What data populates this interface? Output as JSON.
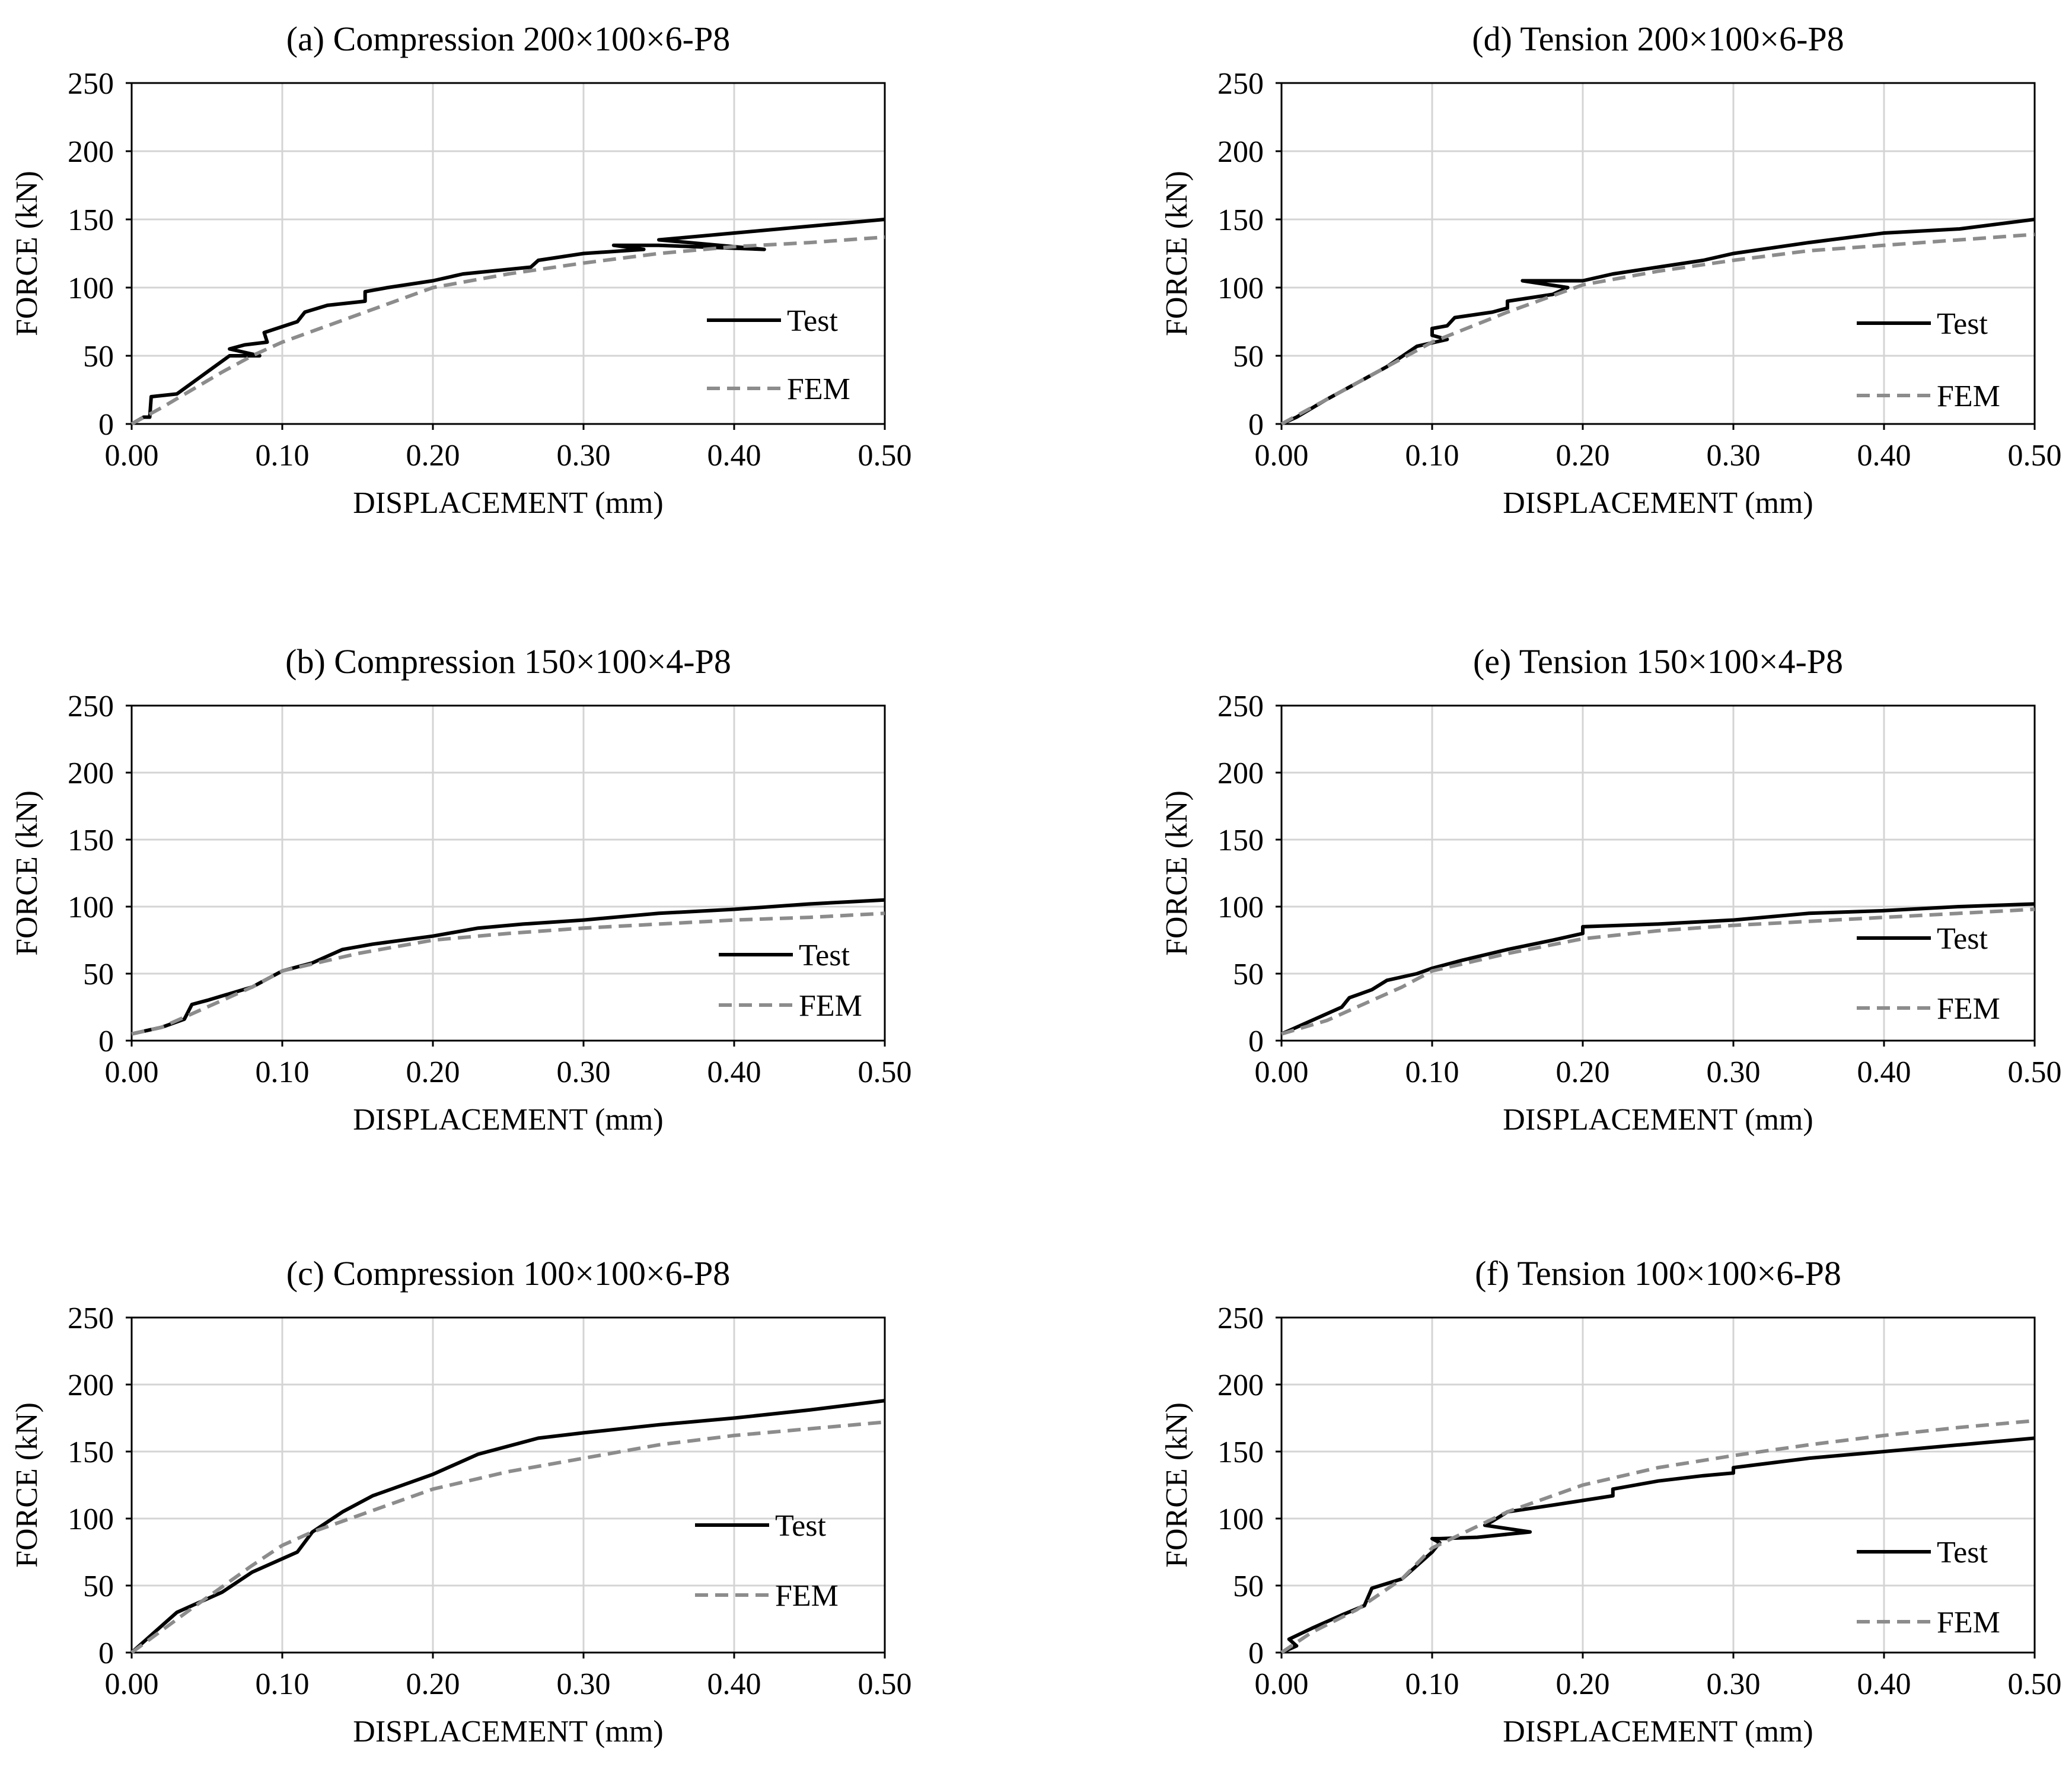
{
  "chart_data": [
    {
      "type": "line",
      "title": "(a) Compression 200×100×6-P8",
      "xlabel": "DISPLACEMENT (mm)",
      "ylabel": "FORCE (kN)",
      "xlim": [
        0,
        0.5
      ],
      "ylim": [
        0,
        250
      ],
      "xticks": [
        "0.00",
        "0.10",
        "0.20",
        "0.30",
        "0.40",
        "0.50"
      ],
      "yticks": [
        "0",
        "50",
        "100",
        "150",
        "200",
        "250"
      ],
      "grid": true,
      "legend_position": "right",
      "series": [
        {
          "name": "Test",
          "style": "solid",
          "color": "#000000",
          "x": [
            0,
            0.008,
            0.012,
            0.013,
            0.03,
            0.05,
            0.065,
            0.085,
            0.065,
            0.075,
            0.09,
            0.088,
            0.11,
            0.115,
            0.13,
            0.155,
            0.155,
            0.17,
            0.2,
            0.22,
            0.265,
            0.27,
            0.3,
            0.34,
            0.32,
            0.35,
            0.42,
            0.35,
            0.4,
            0.45,
            0.5
          ],
          "y": [
            0,
            5,
            5,
            20,
            22,
            38,
            50,
            50,
            55,
            58,
            60,
            67,
            75,
            82,
            87,
            90,
            97,
            100,
            105,
            110,
            115,
            120,
            125,
            128,
            131,
            131,
            128,
            135,
            140,
            145,
            150
          ]
        },
        {
          "name": "FEM",
          "style": "dashed",
          "color": "#8c8c8c",
          "x": [
            0,
            0.02,
            0.04,
            0.06,
            0.08,
            0.1,
            0.12,
            0.15,
            0.2,
            0.25,
            0.3,
            0.35,
            0.4,
            0.45,
            0.5
          ],
          "y": [
            0,
            12,
            25,
            38,
            50,
            60,
            68,
            80,
            100,
            110,
            118,
            125,
            130,
            133,
            137
          ]
        }
      ]
    },
    {
      "type": "line",
      "title": "(b) Compression 150×100×4-P8",
      "xlabel": "DISPLACEMENT (mm)",
      "ylabel": "FORCE (kN)",
      "xlim": [
        0,
        0.5
      ],
      "ylim": [
        0,
        250
      ],
      "xticks": [
        "0.00",
        "0.10",
        "0.20",
        "0.30",
        "0.40",
        "0.50"
      ],
      "yticks": [
        "0",
        "50",
        "100",
        "150",
        "200",
        "250"
      ],
      "grid": true,
      "legend_position": "right",
      "series": [
        {
          "name": "Test",
          "style": "solid",
          "color": "#000000",
          "x": [
            0,
            0.02,
            0.035,
            0.04,
            0.05,
            0.08,
            0.1,
            0.12,
            0.14,
            0.16,
            0.2,
            0.23,
            0.26,
            0.3,
            0.35,
            0.4,
            0.45,
            0.5
          ],
          "y": [
            5,
            10,
            16,
            27,
            30,
            40,
            52,
            58,
            68,
            72,
            78,
            84,
            87,
            90,
            95,
            98,
            102,
            105
          ]
        },
        {
          "name": "FEM",
          "style": "dashed",
          "color": "#8c8c8c",
          "x": [
            0,
            0.02,
            0.05,
            0.08,
            0.1,
            0.15,
            0.2,
            0.25,
            0.3,
            0.35,
            0.4,
            0.45,
            0.5
          ],
          "y": [
            5,
            10,
            25,
            40,
            52,
            65,
            75,
            80,
            84,
            87,
            90,
            92,
            95
          ]
        }
      ]
    },
    {
      "type": "line",
      "title": "(c) Compression 100×100×6-P8",
      "xlabel": "DISPLACEMENT (mm)",
      "ylabel": "FORCE (kN)",
      "xlim": [
        0,
        0.5
      ],
      "ylim": [
        0,
        250
      ],
      "xticks": [
        "0.00",
        "0.10",
        "0.20",
        "0.30",
        "0.40",
        "0.50"
      ],
      "yticks": [
        "0",
        "50",
        "100",
        "150",
        "200",
        "250"
      ],
      "grid": true,
      "legend_position": "right",
      "series": [
        {
          "name": "Test",
          "style": "solid",
          "color": "#000000",
          "x": [
            0,
            0.03,
            0.06,
            0.08,
            0.11,
            0.12,
            0.14,
            0.16,
            0.2,
            0.23,
            0.27,
            0.3,
            0.35,
            0.4,
            0.45,
            0.5
          ],
          "y": [
            0,
            30,
            45,
            60,
            75,
            90,
            105,
            117,
            133,
            148,
            160,
            164,
            170,
            175,
            181,
            188
          ]
        },
        {
          "name": "FEM",
          "style": "dashed",
          "color": "#8c8c8c",
          "x": [
            0,
            0.04,
            0.08,
            0.1,
            0.12,
            0.15,
            0.2,
            0.25,
            0.3,
            0.35,
            0.4,
            0.45,
            0.5
          ],
          "y": [
            0,
            33,
            65,
            80,
            90,
            102,
            122,
            135,
            145,
            155,
            162,
            167,
            172
          ]
        }
      ]
    },
    {
      "type": "line",
      "title": "(d) Tension 200×100×6-P8",
      "xlabel": "DISPLACEMENT (mm)",
      "ylabel": "FORCE (kN)",
      "xlim": [
        0,
        0.5
      ],
      "ylim": [
        0,
        250
      ],
      "xticks": [
        "0.00",
        "0.10",
        "0.20",
        "0.30",
        "0.40",
        "0.50"
      ],
      "yticks": [
        "0",
        "50",
        "100",
        "150",
        "200",
        "250"
      ],
      "grid": true,
      "legend_position": "right",
      "series": [
        {
          "name": "Test",
          "style": "solid",
          "color": "#000000",
          "x": [
            0,
            0.01,
            0.03,
            0.05,
            0.07,
            0.09,
            0.11,
            0.1,
            0.1,
            0.11,
            0.115,
            0.14,
            0.15,
            0.15,
            0.18,
            0.19,
            0.16,
            0.2,
            0.22,
            0.25,
            0.28,
            0.3,
            0.35,
            0.4,
            0.45,
            0.5
          ],
          "y": [
            0,
            5,
            18,
            30,
            42,
            57,
            62,
            65,
            70,
            72,
            78,
            82,
            85,
            90,
            95,
            100,
            105,
            105,
            110,
            115,
            120,
            125,
            133,
            140,
            143,
            150
          ]
        },
        {
          "name": "FEM",
          "style": "dashed",
          "color": "#8c8c8c",
          "x": [
            0,
            0.02,
            0.05,
            0.08,
            0.1,
            0.15,
            0.2,
            0.25,
            0.3,
            0.35,
            0.4,
            0.45,
            0.5
          ],
          "y": [
            0,
            12,
            30,
            48,
            60,
            82,
            102,
            112,
            120,
            127,
            131,
            135,
            139
          ]
        }
      ]
    },
    {
      "type": "line",
      "title": "(e) Tension 150×100×4-P8",
      "xlabel": "DISPLACEMENT (mm)",
      "ylabel": "FORCE (kN)",
      "xlim": [
        0,
        0.5
      ],
      "ylim": [
        0,
        250
      ],
      "xticks": [
        "0.00",
        "0.10",
        "0.20",
        "0.30",
        "0.40",
        "0.50"
      ],
      "yticks": [
        "0",
        "50",
        "100",
        "150",
        "200",
        "250"
      ],
      "grid": true,
      "legend_position": "right",
      "series": [
        {
          "name": "Test",
          "style": "solid",
          "color": "#000000",
          "x": [
            0,
            0.02,
            0.04,
            0.045,
            0.06,
            0.07,
            0.09,
            0.1,
            0.12,
            0.15,
            0.18,
            0.2,
            0.2,
            0.25,
            0.3,
            0.35,
            0.4,
            0.45,
            0.5
          ],
          "y": [
            5,
            15,
            25,
            32,
            38,
            45,
            50,
            54,
            60,
            68,
            75,
            80,
            85,
            87,
            90,
            95,
            97,
            100,
            102
          ]
        },
        {
          "name": "FEM",
          "style": "dashed",
          "color": "#8c8c8c",
          "x": [
            0,
            0.03,
            0.05,
            0.08,
            0.1,
            0.15,
            0.2,
            0.25,
            0.3,
            0.35,
            0.4,
            0.45,
            0.5
          ],
          "y": [
            5,
            15,
            25,
            40,
            52,
            65,
            76,
            82,
            86,
            89,
            92,
            95,
            98
          ]
        }
      ]
    },
    {
      "type": "line",
      "title": "(f) Tension 100×100×6-P8",
      "xlabel": "DISPLACEMENT (mm)",
      "ylabel": "FORCE (kN)",
      "xlim": [
        0,
        0.5
      ],
      "ylim": [
        0,
        250
      ],
      "xticks": [
        "0.00",
        "0.10",
        "0.20",
        "0.30",
        "0.40",
        "0.50"
      ],
      "yticks": [
        "0",
        "50",
        "100",
        "150",
        "200",
        "250"
      ],
      "grid": true,
      "legend_position": "right",
      "series": [
        {
          "name": "Test",
          "style": "solid",
          "color": "#000000",
          "x": [
            0,
            0.01,
            0.005,
            0.02,
            0.04,
            0.055,
            0.06,
            0.08,
            0.09,
            0.1,
            0.105,
            0.1,
            0.105,
            0.13,
            0.165,
            0.135,
            0.14,
            0.15,
            0.18,
            0.22,
            0.22,
            0.25,
            0.28,
            0.3,
            0.3,
            0.35,
            0.4,
            0.45,
            0.5
          ],
          "y": [
            0,
            5,
            10,
            18,
            28,
            35,
            48,
            55,
            65,
            75,
            82,
            85,
            85,
            86,
            90,
            95,
            98,
            105,
            110,
            117,
            122,
            128,
            132,
            134,
            138,
            145,
            150,
            155,
            160
          ]
        },
        {
          "name": "FEM",
          "style": "dashed",
          "color": "#8c8c8c",
          "x": [
            0,
            0.02,
            0.05,
            0.08,
            0.1,
            0.15,
            0.2,
            0.25,
            0.3,
            0.35,
            0.4,
            0.45,
            0.5
          ],
          "y": [
            0,
            15,
            32,
            55,
            78,
            105,
            125,
            138,
            147,
            155,
            162,
            168,
            173
          ]
        }
      ]
    }
  ]
}
